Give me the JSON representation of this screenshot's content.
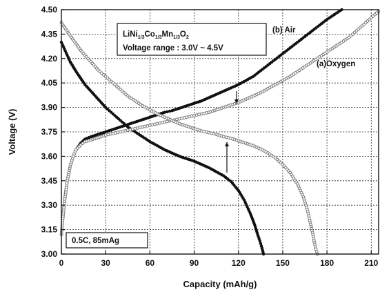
{
  "chart_data": {
    "type": "scatter",
    "title": "",
    "xlabel": "Capacity (mAh/g)",
    "ylabel": "Voltage (V)",
    "xlim": [
      0,
      215
    ],
    "ylim": [
      3.0,
      4.5
    ],
    "x_ticks": [
      "0",
      "30",
      "60",
      "90",
      "120",
      "150",
      "180",
      "210"
    ],
    "y_ticks": [
      "3.00",
      "3.15",
      "3.30",
      "3.45",
      "3.60",
      "3.75",
      "3.90",
      "4.05",
      "4.20",
      "4.35",
      "4.50"
    ],
    "grid": true,
    "annotations": {
      "formula": {
        "parts": [
          "LiNi",
          "1/3",
          "Co",
          "1/3",
          "Mn",
          "1/3",
          "O",
          "2"
        ]
      },
      "voltage_range": "Voltage range : 3.0V ~ 4.5V",
      "rate": "0.5C, 85mAg"
    },
    "series": [
      {
        "name": "(b) Air",
        "label": "(b) Air",
        "color": "#111111",
        "marker": "filled-circle",
        "charge": {
          "x": [
            0,
            1,
            2,
            3,
            4,
            6,
            8,
            10,
            13,
            16,
            20,
            25,
            30,
            35,
            40,
            45,
            50,
            55,
            60,
            65,
            70,
            75,
            80,
            85,
            90,
            95,
            100,
            105,
            110,
            115,
            120,
            125,
            130,
            135,
            140,
            145,
            150,
            155,
            160,
            165,
            170,
            175,
            180,
            185,
            190
          ],
          "y": [
            3.12,
            3.22,
            3.31,
            3.39,
            3.45,
            3.54,
            3.6,
            3.64,
            3.68,
            3.705,
            3.72,
            3.735,
            3.75,
            3.765,
            3.78,
            3.795,
            3.81,
            3.825,
            3.84,
            3.855,
            3.87,
            3.88,
            3.895,
            3.91,
            3.925,
            3.94,
            3.96,
            3.98,
            4.0,
            4.02,
            4.04,
            4.065,
            4.09,
            4.125,
            4.16,
            4.195,
            4.23,
            4.265,
            4.3,
            4.335,
            4.37,
            4.405,
            4.44,
            4.47,
            4.5
          ]
        },
        "discharge": {
          "x": [
            0,
            2,
            4,
            6,
            8,
            10,
            13,
            16,
            20,
            25,
            30,
            35,
            40,
            45,
            50,
            55,
            60,
            65,
            70,
            75,
            80,
            85,
            90,
            95,
            100,
            105,
            110,
            115,
            120,
            124,
            128,
            131,
            133,
            134.5,
            135.5,
            136.3,
            137
          ],
          "y": [
            4.3,
            4.26,
            4.22,
            4.18,
            4.15,
            4.12,
            4.08,
            4.04,
            4.0,
            3.95,
            3.9,
            3.86,
            3.82,
            3.78,
            3.75,
            3.72,
            3.69,
            3.665,
            3.64,
            3.62,
            3.6,
            3.585,
            3.57,
            3.55,
            3.53,
            3.505,
            3.48,
            3.445,
            3.39,
            3.33,
            3.25,
            3.18,
            3.12,
            3.08,
            3.05,
            3.025,
            3.0
          ]
        }
      },
      {
        "name": "(a)Oxygen",
        "label": "(a)Oxygen",
        "color": "#777777",
        "marker": "open-circle",
        "charge": {
          "x": [
            0,
            1,
            2,
            4,
            6,
            8,
            10,
            13,
            16,
            20,
            25,
            30,
            35,
            40,
            45,
            50,
            55,
            60,
            65,
            70,
            75,
            80,
            85,
            90,
            95,
            100,
            105,
            110,
            115,
            120,
            125,
            130,
            135,
            140,
            145,
            150,
            155,
            160,
            165,
            170,
            175,
            180,
            185,
            190,
            195,
            200,
            205,
            210,
            215
          ],
          "y": [
            3.12,
            3.22,
            3.31,
            3.45,
            3.54,
            3.6,
            3.64,
            3.67,
            3.69,
            3.7,
            3.715,
            3.73,
            3.74,
            3.75,
            3.76,
            3.77,
            3.78,
            3.79,
            3.8,
            3.81,
            3.82,
            3.83,
            3.84,
            3.85,
            3.86,
            3.87,
            3.885,
            3.9,
            3.915,
            3.93,
            3.95,
            3.97,
            3.99,
            4.015,
            4.04,
            4.065,
            4.09,
            4.12,
            4.15,
            4.18,
            4.21,
            4.24,
            4.27,
            4.3,
            4.33,
            4.37,
            4.41,
            4.45,
            4.49
          ]
        },
        "discharge": {
          "x": [
            0,
            3,
            6,
            10,
            14,
            18,
            22,
            26,
            30,
            35,
            40,
            45,
            50,
            55,
            60,
            65,
            70,
            75,
            80,
            85,
            90,
            95,
            100,
            105,
            110,
            115,
            120,
            125,
            130,
            135,
            140,
            145,
            150,
            155,
            160,
            164,
            167,
            169,
            170.5,
            171.5,
            172.5,
            173.5
          ],
          "y": [
            4.42,
            4.38,
            4.34,
            4.29,
            4.24,
            4.2,
            4.16,
            4.12,
            4.09,
            4.05,
            4.01,
            3.97,
            3.94,
            3.91,
            3.885,
            3.86,
            3.84,
            3.82,
            3.8,
            3.785,
            3.77,
            3.755,
            3.745,
            3.735,
            3.72,
            3.71,
            3.695,
            3.68,
            3.665,
            3.645,
            3.62,
            3.59,
            3.55,
            3.5,
            3.43,
            3.35,
            3.26,
            3.18,
            3.12,
            3.07,
            3.03,
            3.0
          ]
        }
      }
    ]
  }
}
